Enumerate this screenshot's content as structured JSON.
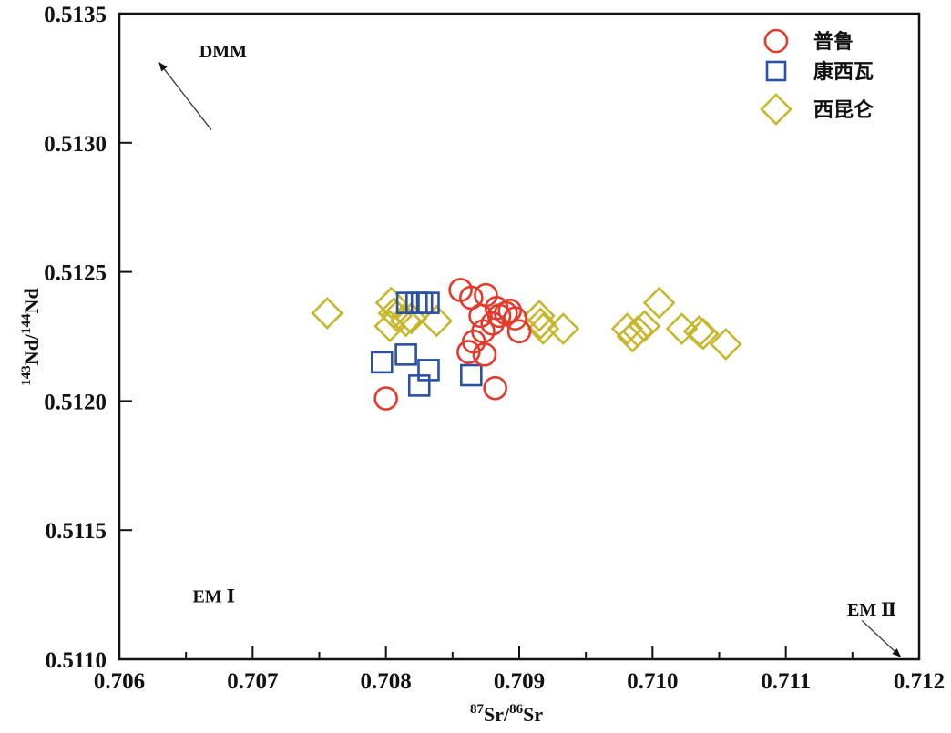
{
  "chart_data": {
    "type": "scatter",
    "title": "",
    "xlabel": {
      "sup1": "87",
      "t1": "Sr/",
      "sup2": "86",
      "t2": "Sr"
    },
    "ylabel": {
      "sup1": "143",
      "t1": "Nd/",
      "sup2": "144",
      "t2": "Nd"
    },
    "xlim": [
      0.706,
      0.712
    ],
    "ylim": [
      0.511,
      0.5135
    ],
    "xticks": [
      0.706,
      0.707,
      0.708,
      0.709,
      0.71,
      0.711,
      0.712
    ],
    "xtick_labels": [
      "0.706",
      "0.707",
      "0.708",
      "0.709",
      "0.710",
      "0.711",
      "0.712"
    ],
    "xminor": [
      0.7065,
      0.7075,
      0.7085,
      0.7095,
      0.7105,
      0.7115
    ],
    "yticks": [
      0.511,
      0.5115,
      0.512,
      0.5125,
      0.513,
      0.5135
    ],
    "ytick_labels": [
      "0.5110",
      "0.5115",
      "0.5120",
      "0.5125",
      "0.5130",
      "0.5135"
    ],
    "grid": false,
    "legend_position": "top-right",
    "annotations": [
      {
        "text": "DMM",
        "x": 0.7066,
        "y": 0.51333,
        "arrow": {
          "from": [
            0.70669,
            0.51305
          ],
          "to": [
            0.7063,
            0.51331
          ]
        }
      },
      {
        "text": "EM Ⅰ",
        "x": 0.70655,
        "y": 0.51122
      },
      {
        "text": "EM Ⅱ",
        "x": 0.71146,
        "y": 0.51117,
        "arrow": {
          "from": [
            0.71157,
            0.51115
          ],
          "to": [
            0.71186,
            0.51101
          ]
        }
      }
    ],
    "series": [
      {
        "name": "普鲁",
        "marker": "circle",
        "color": "#E5392B",
        "points": [
          [
            0.70856,
            0.51243
          ],
          [
            0.70864,
            0.5124
          ],
          [
            0.70875,
            0.51241
          ],
          [
            0.70883,
            0.51236
          ],
          [
            0.70885,
            0.51233
          ],
          [
            0.7089,
            0.51234
          ],
          [
            0.70893,
            0.51235
          ],
          [
            0.70897,
            0.51232
          ],
          [
            0.709,
            0.51227
          ],
          [
            0.7088,
            0.5123
          ],
          [
            0.70873,
            0.51227
          ],
          [
            0.70871,
            0.51233
          ],
          [
            0.70866,
            0.51223
          ],
          [
            0.70862,
            0.51219
          ],
          [
            0.70874,
            0.51218
          ],
          [
            0.70882,
            0.51205
          ],
          [
            0.708,
            0.51201
          ]
        ]
      },
      {
        "name": "康西瓦",
        "marker": "square",
        "color": "#2B50A8",
        "points": [
          [
            0.70816,
            0.51238
          ],
          [
            0.70823,
            0.51238
          ],
          [
            0.70827,
            0.51238
          ],
          [
            0.70832,
            0.51238
          ],
          [
            0.70797,
            0.51215
          ],
          [
            0.70815,
            0.51218
          ],
          [
            0.70832,
            0.51212
          ],
          [
            0.70825,
            0.51206
          ],
          [
            0.70864,
            0.5121
          ]
        ]
      },
      {
        "name": "西昆仑",
        "marker": "diamond",
        "color": "#C8B72A",
        "points": [
          [
            0.70756,
            0.51234
          ],
          [
            0.70804,
            0.51238
          ],
          [
            0.70806,
            0.51234
          ],
          [
            0.70808,
            0.51233
          ],
          [
            0.70815,
            0.51231
          ],
          [
            0.70803,
            0.51229
          ],
          [
            0.70819,
            0.51232
          ],
          [
            0.70838,
            0.51231
          ],
          [
            0.70915,
            0.51233
          ],
          [
            0.70916,
            0.5123
          ],
          [
            0.70918,
            0.51228
          ],
          [
            0.70933,
            0.51228
          ],
          [
            0.70981,
            0.51228
          ],
          [
            0.70985,
            0.51225
          ],
          [
            0.70989,
            0.51227
          ],
          [
            0.70994,
            0.51229
          ],
          [
            0.71005,
            0.51238
          ],
          [
            0.71022,
            0.51228
          ],
          [
            0.71035,
            0.51227
          ],
          [
            0.71038,
            0.51226
          ],
          [
            0.71055,
            0.51222
          ]
        ]
      }
    ]
  }
}
